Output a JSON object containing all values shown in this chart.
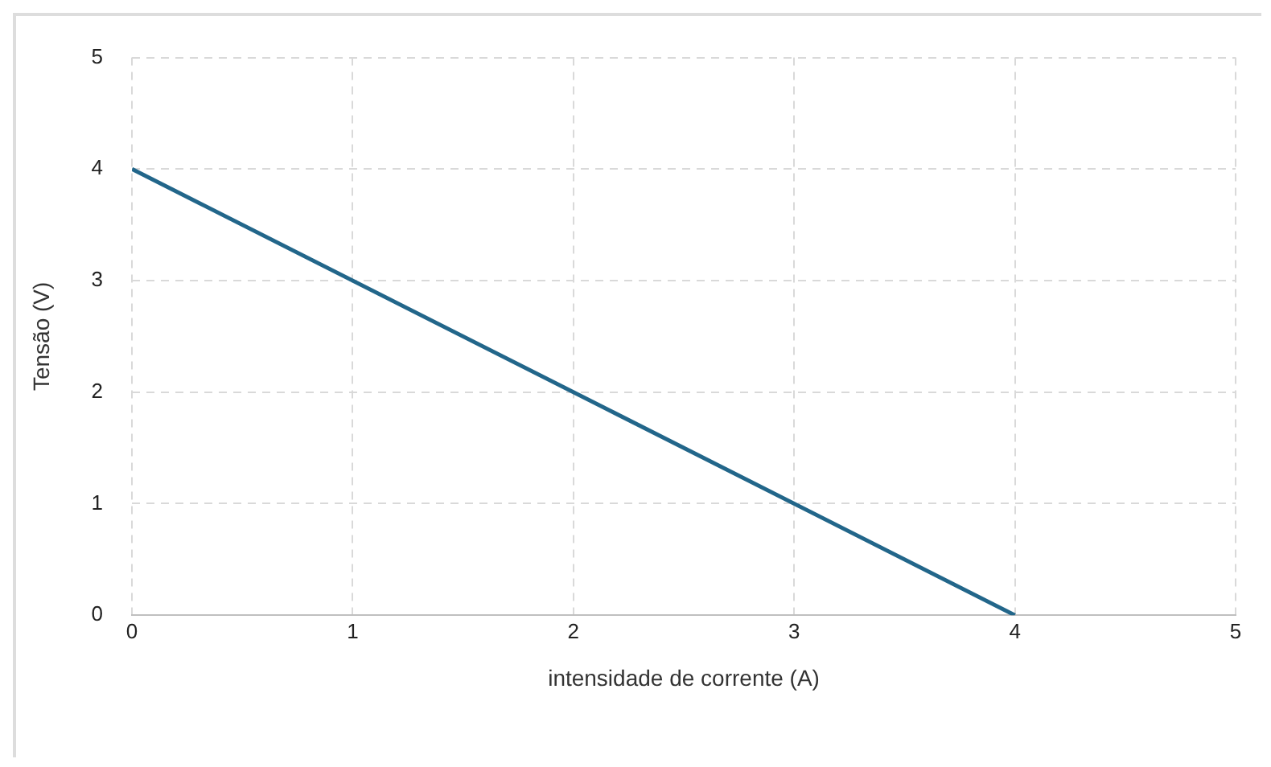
{
  "chart_data": {
    "type": "line",
    "xlabel": "intensidade de corrente (A)",
    "ylabel": "Tensão (V)",
    "x": [
      0,
      4
    ],
    "series": [
      {
        "color": "#22668a",
        "values": [
          4,
          0
        ]
      }
    ],
    "xlim": [
      0,
      5
    ],
    "xticks": [
      0,
      1,
      2,
      3,
      4,
      5
    ],
    "ylim": [
      0,
      5
    ],
    "yticks": [
      0,
      1,
      2,
      3,
      4,
      5
    ],
    "grid": true,
    "legend": false,
    "marker": "none",
    "line_style": "solid"
  }
}
